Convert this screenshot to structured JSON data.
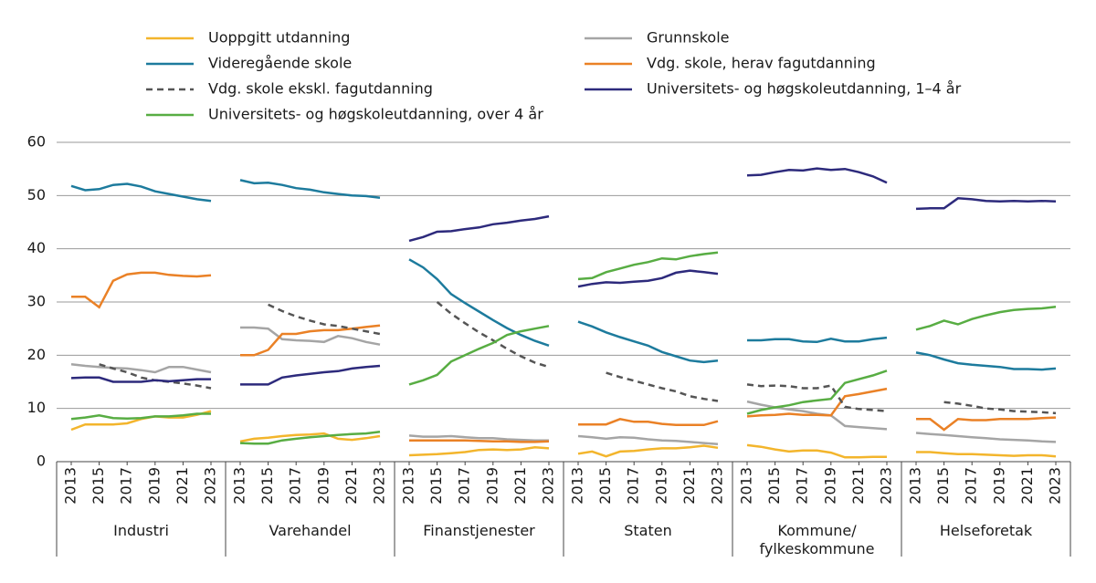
{
  "chart_data": {
    "type": "line",
    "series": [
      {
        "name": "Uoppgitt utdanning",
        "color": "#f3b52c",
        "dashed": false
      },
      {
        "name": "Grunnskole",
        "color": "#a5a5a5",
        "dashed": false
      },
      {
        "name": "Videregående skole",
        "color": "#1d7b9d",
        "dashed": false
      },
      {
        "name": "Vdg. skole, herav fagutdanning",
        "color": "#ea8126",
        "dashed": false
      },
      {
        "name": "Vdg. skole ekskl. fagutdanning",
        "color": "#555555",
        "dashed": true
      },
      {
        "name": "Universitets- og høgskoleutdanning, 1–4 år",
        "color": "#2d2a7c",
        "dashed": false
      },
      {
        "name": "Universitets- og høgskoleutdanning, over 4 år",
        "color": "#58ad43",
        "dashed": false
      }
    ],
    "ylim": [
      0,
      60
    ],
    "yticks": [
      0,
      10,
      20,
      30,
      40,
      50,
      60
    ],
    "grid": true,
    "panels": [
      {
        "label": "Industri",
        "x": [
          2013,
          2014,
          2015,
          2016,
          2017,
          2018,
          2019,
          2020,
          2021,
          2022,
          2023
        ],
        "xticks": [
          2013,
          2015,
          2017,
          2019,
          2021,
          2023
        ],
        "series": [
          {
            "values": [
              6,
              7,
              7,
              7,
              7.2,
              8,
              8.5,
              8.3,
              8.3,
              8.8,
              9.5
            ]
          },
          {
            "values": [
              18.3,
              18,
              17.8,
              17.6,
              17.5,
              17.2,
              16.8,
              17.8,
              17.8,
              17.3,
              16.8
            ]
          },
          {
            "values": [
              51.8,
              51,
              51.2,
              52,
              52.2,
              51.7,
              50.8,
              50.3,
              49.8,
              49.3,
              49
            ]
          },
          {
            "values": [
              31,
              31,
              29,
              34,
              35.2,
              35.5,
              35.5,
              35.1,
              34.9,
              34.8,
              35
            ]
          },
          {
            "values": [
              null,
              null,
              18.3,
              17.5,
              16.8,
              15.8,
              15.3,
              15,
              14.7,
              14.3,
              13.8
            ]
          },
          {
            "values": [
              15.7,
              15.8,
              15.8,
              15,
              15,
              15,
              15.3,
              15.1,
              15.3,
              15.5,
              15.5
            ]
          },
          {
            "values": [
              8,
              8.3,
              8.7,
              8.2,
              8.1,
              8.2,
              8.5,
              8.5,
              8.7,
              9,
              9
            ]
          }
        ]
      },
      {
        "label": "Varehandel",
        "x": [
          2013,
          2014,
          2015,
          2016,
          2017,
          2018,
          2019,
          2020,
          2021,
          2022,
          2023
        ],
        "xticks": [
          2013,
          2015,
          2017,
          2019,
          2021,
          2023
        ],
        "series": [
          {
            "values": [
              3.8,
              4.3,
              4.5,
              4.8,
              5,
              5.1,
              5.3,
              4.3,
              4.1,
              4.4,
              4.8
            ]
          },
          {
            "values": [
              25.2,
              25.2,
              25,
              23,
              22.8,
              22.7,
              22.5,
              23.6,
              23.2,
              22.5,
              22
            ]
          },
          {
            "values": [
              52.9,
              52.3,
              52.4,
              52,
              51.4,
              51.1,
              50.6,
              50.3,
              50,
              49.9,
              49.6
            ]
          },
          {
            "values": [
              20,
              20,
              21,
              24,
              24,
              24.5,
              24.7,
              24.7,
              25,
              25.3,
              25.6
            ]
          },
          {
            "values": [
              null,
              null,
              29.5,
              28.3,
              27.3,
              26.5,
              25.8,
              25.5,
              25,
              24.5,
              24
            ]
          },
          {
            "values": [
              14.5,
              14.5,
              14.5,
              15.8,
              16.2,
              16.5,
              16.8,
              17,
              17.5,
              17.8,
              18
            ]
          },
          {
            "values": [
              3.5,
              3.4,
              3.4,
              4,
              4.3,
              4.6,
              4.8,
              5,
              5.2,
              5.3,
              5.6
            ]
          }
        ]
      },
      {
        "label": "Finanstjenester",
        "x": [
          2013,
          2014,
          2015,
          2016,
          2017,
          2018,
          2019,
          2020,
          2021,
          2022,
          2023
        ],
        "xticks": [
          2013,
          2015,
          2017,
          2019,
          2021,
          2023
        ],
        "series": [
          {
            "values": [
              1.2,
              1.3,
              1.4,
              1.6,
              1.8,
              2.2,
              2.3,
              2.2,
              2.3,
              2.7,
              2.5
            ]
          },
          {
            "values": [
              4.9,
              4.7,
              4.7,
              4.8,
              4.6,
              4.4,
              4.4,
              4.2,
              4.1,
              4,
              4
            ]
          },
          {
            "values": [
              38,
              36.5,
              34.3,
              31.5,
              29.8,
              28.2,
              26.6,
              25.1,
              23.8,
              22.7,
              21.8
            ]
          },
          {
            "values": [
              4,
              4,
              4,
              4,
              4,
              3.9,
              3.8,
              3.8,
              3.7,
              3.7,
              3.8
            ]
          },
          {
            "values": [
              null,
              null,
              30,
              27.8,
              26,
              24.3,
              22.8,
              21.2,
              19.8,
              18.6,
              17.8
            ]
          },
          {
            "values": [
              41.5,
              42.2,
              43.2,
              43.3,
              43.7,
              44,
              44.6,
              44.9,
              45.3,
              45.6,
              46.1
            ]
          },
          {
            "values": [
              14.5,
              15.3,
              16.3,
              18.8,
              20,
              21.2,
              22.3,
              23.8,
              24.5,
              25,
              25.5
            ]
          }
        ]
      },
      {
        "label": "Staten",
        "x": [
          2013,
          2014,
          2015,
          2016,
          2017,
          2018,
          2019,
          2020,
          2021,
          2022,
          2023
        ],
        "xticks": [
          2013,
          2015,
          2017,
          2019,
          2021,
          2023
        ],
        "series": [
          {
            "values": [
              1.5,
              1.9,
              1,
              1.9,
              2,
              2.3,
              2.5,
              2.5,
              2.7,
              3,
              2.6
            ]
          },
          {
            "values": [
              4.8,
              4.6,
              4.3,
              4.6,
              4.5,
              4.2,
              4,
              3.9,
              3.7,
              3.5,
              3.3
            ]
          },
          {
            "values": [
              26.3,
              25.4,
              24.3,
              23.4,
              22.6,
              21.8,
              20.6,
              19.8,
              19,
              18.7,
              19
            ]
          },
          {
            "values": [
              7,
              7,
              7,
              8,
              7.5,
              7.5,
              7.1,
              6.9,
              6.9,
              6.9,
              7.6
            ]
          },
          {
            "values": [
              null,
              null,
              16.7,
              15.9,
              15.2,
              14.5,
              13.8,
              13.2,
              12.3,
              11.8,
              11.4
            ]
          },
          {
            "values": [
              32.9,
              33.4,
              33.7,
              33.6,
              33.8,
              34,
              34.5,
              35.5,
              35.9,
              35.6,
              35.3
            ]
          },
          {
            "values": [
              34.3,
              34.5,
              35.6,
              36.3,
              37,
              37.5,
              38.2,
              38,
              38.6,
              39,
              39.3
            ]
          }
        ]
      },
      {
        "label": "Kommune/ fylkeskommune",
        "x": [
          2013,
          2014,
          2015,
          2016,
          2017,
          2018,
          2019,
          2020,
          2021,
          2022,
          2023
        ],
        "xticks": [
          2013,
          2015,
          2017,
          2019,
          2021,
          2023
        ],
        "series": [
          {
            "values": [
              3.1,
              2.8,
              2.3,
              1.9,
              2.1,
              2.1,
              1.7,
              0.8,
              0.8,
              0.9,
              0.9
            ]
          },
          {
            "values": [
              11.3,
              10.7,
              10.2,
              9.8,
              9.5,
              9,
              8.7,
              6.7,
              6.5,
              6.3,
              6.1
            ]
          },
          {
            "values": [
              22.8,
              22.8,
              23,
              23,
              22.6,
              22.5,
              23.1,
              22.6,
              22.6,
              23,
              23.3
            ]
          },
          {
            "values": [
              8.5,
              8.7,
              8.8,
              9,
              8.8,
              8.8,
              8.7,
              12.3,
              12.7,
              13.2,
              13.7
            ]
          },
          {
            "values": [
              14.5,
              14.2,
              14.3,
              14.2,
              13.8,
              13.8,
              14.3,
              10.3,
              9.9,
              9.7,
              9.5
            ]
          },
          {
            "values": [
              53.8,
              53.9,
              54.4,
              54.8,
              54.7,
              55.1,
              54.8,
              55,
              54.4,
              53.6,
              52.4
            ]
          },
          {
            "values": [
              9,
              9.7,
              10.2,
              10.6,
              11.2,
              11.5,
              11.8,
              14.8,
              15.5,
              16.2,
              17.1
            ]
          }
        ]
      },
      {
        "label": "Helseforetak",
        "x": [
          2013,
          2014,
          2015,
          2016,
          2017,
          2018,
          2019,
          2020,
          2021,
          2022,
          2023
        ],
        "xticks": [
          2013,
          2015,
          2017,
          2019,
          2021,
          2023
        ],
        "series": [
          {
            "values": [
              1.8,
              1.8,
              1.6,
              1.4,
              1.4,
              1.3,
              1.2,
              1.1,
              1.2,
              1.2,
              1
            ]
          },
          {
            "values": [
              5.4,
              5.2,
              5,
              4.8,
              4.6,
              4.4,
              4.2,
              4.1,
              4,
              3.8,
              3.7
            ]
          },
          {
            "values": [
              20.5,
              20,
              19.2,
              18.5,
              18.2,
              18,
              17.8,
              17.4,
              17.4,
              17.3,
              17.5
            ]
          },
          {
            "values": [
              8,
              8,
              6,
              8,
              7.8,
              7.8,
              8,
              8,
              8,
              8.2,
              8.3
            ]
          },
          {
            "values": [
              null,
              null,
              11.2,
              10.9,
              10.5,
              10,
              9.8,
              9.5,
              9.4,
              9.3,
              9.1
            ]
          },
          {
            "values": [
              47.5,
              47.6,
              47.6,
              49.5,
              49.3,
              49,
              48.9,
              49,
              48.9,
              49,
              48.9
            ]
          },
          {
            "values": [
              24.8,
              25.5,
              26.5,
              25.8,
              26.8,
              27.5,
              28.1,
              28.5,
              28.7,
              28.8,
              29.1
            ]
          }
        ]
      }
    ]
  }
}
